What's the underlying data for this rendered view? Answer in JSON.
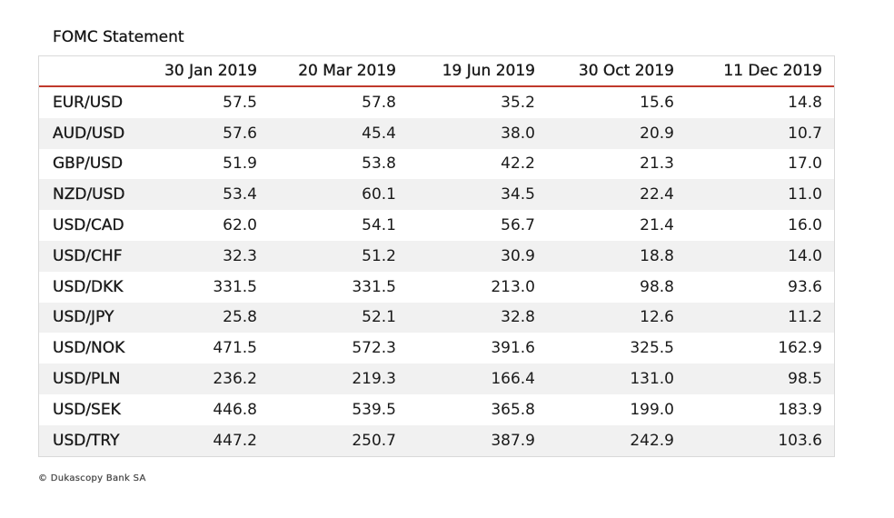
{
  "title": "FOMC Statement",
  "footer": "© Dukascopy Bank SA",
  "colors": {
    "header_rule": "#c0392b",
    "alt_row": "#f1f1f1",
    "border": "#d9d9d9"
  },
  "chart_data": {
    "type": "table",
    "title": "FOMC Statement",
    "columns": [
      "",
      "30 Jan 2019",
      "20 Mar 2019",
      "19 Jun 2019",
      "30 Oct 2019",
      "11 Dec 2019"
    ],
    "rows": [
      {
        "pair": "EUR/USD",
        "values": [
          "57.5",
          "57.8",
          "35.2",
          "15.6",
          "14.8"
        ]
      },
      {
        "pair": "AUD/USD",
        "values": [
          "57.6",
          "45.4",
          "38.0",
          "20.9",
          "10.7"
        ]
      },
      {
        "pair": "GBP/USD",
        "values": [
          "51.9",
          "53.8",
          "42.2",
          "21.3",
          "17.0"
        ]
      },
      {
        "pair": "NZD/USD",
        "values": [
          "53.4",
          "60.1",
          "34.5",
          "22.4",
          "11.0"
        ]
      },
      {
        "pair": "USD/CAD",
        "values": [
          "62.0",
          "54.1",
          "56.7",
          "21.4",
          "16.0"
        ]
      },
      {
        "pair": "USD/CHF",
        "values": [
          "32.3",
          "51.2",
          "30.9",
          "18.8",
          "14.0"
        ]
      },
      {
        "pair": "USD/DKK",
        "values": [
          "331.5",
          "331.5",
          "213.0",
          "98.8",
          "93.6"
        ]
      },
      {
        "pair": "USD/JPY",
        "values": [
          "25.8",
          "52.1",
          "32.8",
          "12.6",
          "11.2"
        ]
      },
      {
        "pair": "USD/NOK",
        "values": [
          "471.5",
          "572.3",
          "391.6",
          "325.5",
          "162.9"
        ]
      },
      {
        "pair": "USD/PLN",
        "values": [
          "236.2",
          "219.3",
          "166.4",
          "131.0",
          "98.5"
        ]
      },
      {
        "pair": "USD/SEK",
        "values": [
          "446.8",
          "539.5",
          "365.8",
          "199.0",
          "183.9"
        ]
      },
      {
        "pair": "USD/TRY",
        "values": [
          "447.2",
          "250.7",
          "387.9",
          "242.9",
          "103.6"
        ]
      }
    ]
  }
}
